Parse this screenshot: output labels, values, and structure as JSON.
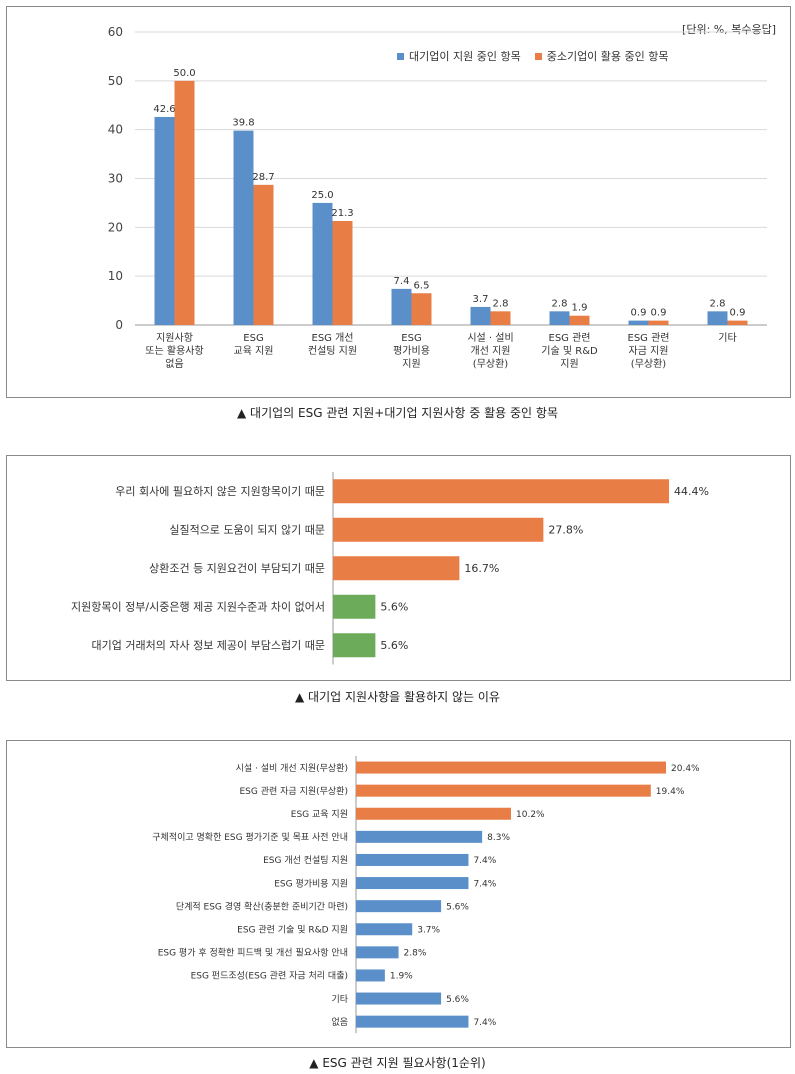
{
  "colors": {
    "blue": "#5b8fc9",
    "orange": "#e87d46",
    "green": "#6bab5a",
    "axis": "#999999",
    "grid": "#d9d9d9"
  },
  "chart_data": [
    {
      "type": "bar",
      "orientation": "vertical",
      "unit_note": "[단위: %, 복수응답]",
      "caption": "▲ 대기업의 ESG 관련 지원+대기업 지원사항 중 활용 중인 항목",
      "ylim": [
        0,
        60
      ],
      "yticks": [
        0,
        10,
        20,
        30,
        40,
        50,
        60
      ],
      "grid": true,
      "legend_position": "top-right",
      "categories": [
        [
          "지원사항",
          "또는 활용사항",
          "없음"
        ],
        [
          "ESG",
          "교육 지원"
        ],
        [
          "ESG 개선",
          "컨설팅 지원"
        ],
        [
          "ESG",
          "평가비용",
          "지원"
        ],
        [
          "시설 · 설비",
          "개선 지원",
          "(무상환)"
        ],
        [
          "ESG 관련",
          "기술 및 R&D",
          "지원"
        ],
        [
          "ESG 관련",
          "자금 지원",
          "(무상환)"
        ],
        [
          "기타"
        ]
      ],
      "series": [
        {
          "name": "대기업이 지원 중인 항목",
          "color": "#5b8fc9",
          "values": [
            42.6,
            39.8,
            25.0,
            7.4,
            3.7,
            2.8,
            0.9,
            2.8
          ],
          "labels": [
            "42.6",
            "39.8",
            "25.0",
            "7.4",
            "3.7",
            "2.8",
            "0.9",
            "2.8"
          ]
        },
        {
          "name": "중소기업이 활용 중인 항목",
          "color": "#e87d46",
          "values": [
            50.0,
            28.7,
            21.3,
            6.5,
            2.8,
            1.9,
            0.9,
            0.9
          ],
          "labels": [
            "50.0",
            "28.7",
            "21.3",
            "6.5",
            "2.8",
            "1.9",
            "0.9",
            "0.9"
          ]
        }
      ]
    },
    {
      "type": "bar",
      "orientation": "horizontal",
      "caption": "▲ 대기업 지원사항을 활용하지 않는 이유",
      "xlim": [
        0,
        44.4
      ],
      "categories": [
        "우리 회사에 필요하지 않은 지원항목이기 때문",
        "실질적으로 도움이 되지 않기 때문",
        "상환조건 등 지원요건이 부담되기 때문",
        "지원항목이 정부/시중은행 제공 지원수준과 차이 없어서",
        "대기업 거래처의 자사 정보 제공이 부담스럽기 때문"
      ],
      "values": [
        44.4,
        27.8,
        16.7,
        5.6,
        5.6
      ],
      "labels": [
        "44.4%",
        "27.8%",
        "16.7%",
        "5.6%",
        "5.6%"
      ],
      "colors": [
        "#e87d46",
        "#e87d46",
        "#e87d46",
        "#6bab5a",
        "#6bab5a"
      ]
    },
    {
      "type": "bar",
      "orientation": "horizontal",
      "caption": "▲ ESG 관련 지원 필요사항(1순위)",
      "xlim": [
        0,
        20.4
      ],
      "categories": [
        "시설 · 설비 개선 지원(무상환)",
        "ESG 관련 자금 지원(무상환)",
        "ESG 교육 지원",
        "구체적이고 명확한 ESG 평가기준 및 목표 사전 안내",
        "ESG 개선 컨설팅 지원",
        "ESG 평가비용 지원",
        "단계적 ESG 경영 확산(충분한 준비기간 마련)",
        "ESG 관련 기술 및 R&D 지원",
        "ESG 평가 후 정확한 피드백 및 개선 필요사항 안내",
        "ESG 펀드조성(ESG 관련 자금 처리 대출)",
        "기타",
        "없음"
      ],
      "values": [
        20.4,
        19.4,
        10.2,
        8.3,
        7.4,
        7.4,
        5.6,
        3.7,
        2.8,
        1.9,
        5.6,
        7.4
      ],
      "labels": [
        "20.4%",
        "19.4%",
        "10.2%",
        "8.3%",
        "7.4%",
        "7.4%",
        "5.6%",
        "3.7%",
        "2.8%",
        "1.9%",
        "5.6%",
        "7.4%"
      ],
      "colors": [
        "#e87d46",
        "#e87d46",
        "#e87d46",
        "#5b8fc9",
        "#5b8fc9",
        "#5b8fc9",
        "#5b8fc9",
        "#5b8fc9",
        "#5b8fc9",
        "#5b8fc9",
        "#5b8fc9",
        "#5b8fc9"
      ]
    }
  ]
}
